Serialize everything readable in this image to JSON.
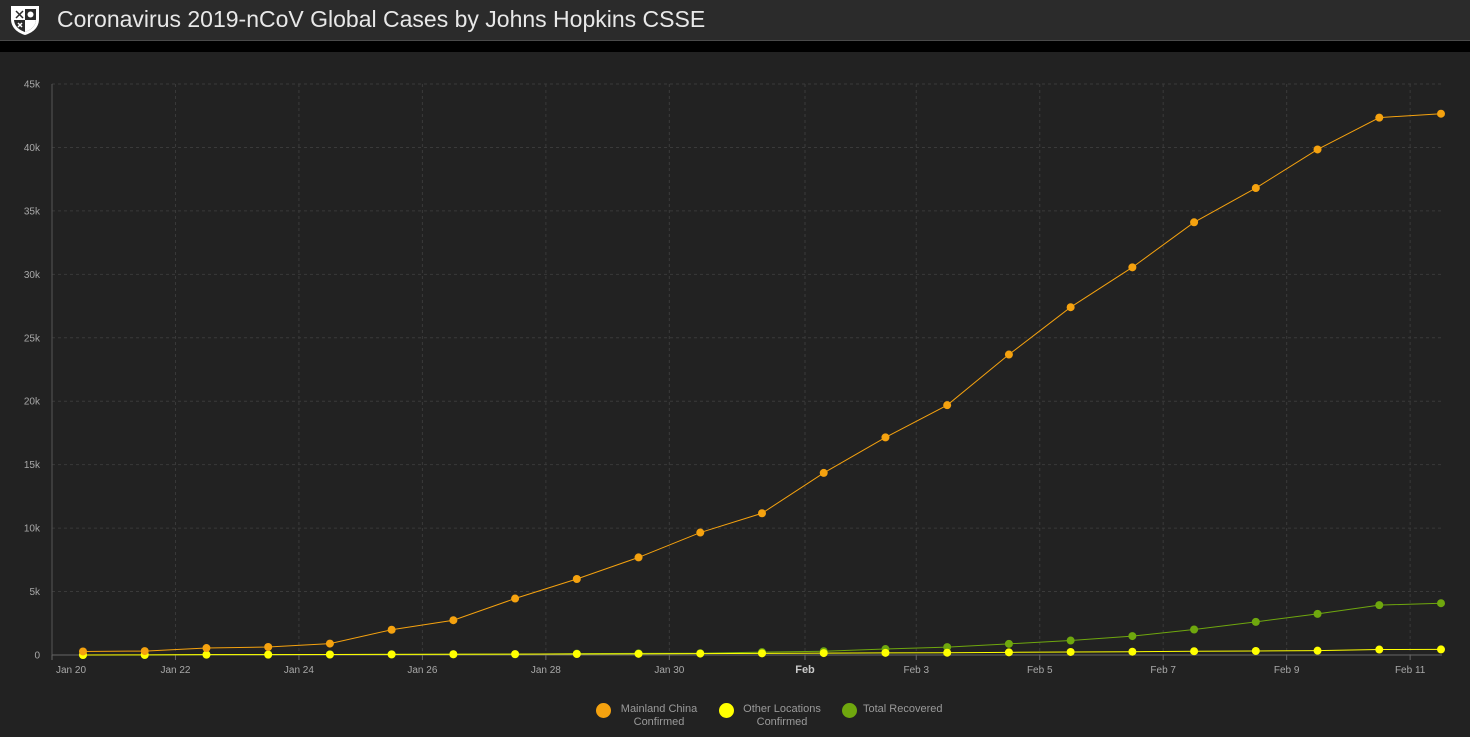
{
  "header": {
    "title": "Coronavirus 2019-nCoV Global Cases by Johns Hopkins CSSE",
    "logo_icon": "university-shield-icon"
  },
  "colors": {
    "background": "#222222",
    "mainland": "#f5a20f",
    "other": "#ffff00",
    "recovered": "#6fa70e",
    "grid": "#3a3a3a"
  },
  "chart_data": {
    "type": "line",
    "title": "",
    "xlabel": "",
    "ylabel": "",
    "ylim": [
      0,
      45000
    ],
    "yticks": [
      0,
      5000,
      10000,
      15000,
      20000,
      25000,
      30000,
      35000,
      40000,
      45000
    ],
    "ytick_labels": [
      "0",
      "5k",
      "10k",
      "15k",
      "20k",
      "25k",
      "30k",
      "35k",
      "40k",
      "45k"
    ],
    "x": [
      "Jan 20",
      "Jan 21",
      "Jan 22",
      "Jan 23",
      "Jan 24",
      "Jan 25",
      "Jan 26",
      "Jan 27",
      "Jan 28",
      "Jan 29",
      "Jan 30",
      "Jan 31",
      "Feb 1",
      "Feb 2",
      "Feb 3",
      "Feb 4",
      "Feb 5",
      "Feb 6",
      "Feb 7",
      "Feb 8",
      "Feb 9",
      "Feb 10",
      "Feb 11"
    ],
    "xtick_labels": [
      {
        "index": 0,
        "label": "Jan 20",
        "bold": false
      },
      {
        "index": 2,
        "label": "Jan 22",
        "bold": false
      },
      {
        "index": 4,
        "label": "Jan 24",
        "bold": false
      },
      {
        "index": 6,
        "label": "Jan 26",
        "bold": false
      },
      {
        "index": 8,
        "label": "Jan 28",
        "bold": false
      },
      {
        "index": 10,
        "label": "Jan 30",
        "bold": false
      },
      {
        "index": 11.75,
        "label": "Feb",
        "bold": true
      },
      {
        "index": 14,
        "label": "Feb 3",
        "bold": false
      },
      {
        "index": 16,
        "label": "Feb 5",
        "bold": false
      },
      {
        "index": 18,
        "label": "Feb 7",
        "bold": false
      },
      {
        "index": 20,
        "label": "Feb 9",
        "bold": false
      },
      {
        "index": 22,
        "label": "Feb 11",
        "bold": false
      }
    ],
    "grid": true,
    "legend_position": "bottom-center",
    "series": [
      {
        "name": "Mainland China Confirmed",
        "color": "#f5a20f",
        "values": [
          280,
          310,
          550,
          630,
          900,
          1990,
          2740,
          4450,
          5990,
          7690,
          9650,
          11170,
          14350,
          17150,
          19690,
          23680,
          27410,
          30550,
          34100,
          36800,
          39840,
          42350,
          42660
        ]
      },
      {
        "name": "Other Locations Confirmed",
        "color": "#ffff00",
        "values": [
          0,
          10,
          25,
          30,
          40,
          50,
          60,
          70,
          80,
          90,
          110,
          130,
          150,
          170,
          180,
          210,
          240,
          260,
          300,
          320,
          340,
          430,
          440
        ]
      },
      {
        "name": "Total Recovered",
        "color": "#6fa70e",
        "values": [
          0,
          0,
          30,
          40,
          40,
          50,
          60,
          60,
          110,
          130,
          140,
          230,
          300,
          470,
          620,
          880,
          1140,
          1490,
          2010,
          2610,
          3240,
          3930,
          4080
        ]
      }
    ]
  }
}
